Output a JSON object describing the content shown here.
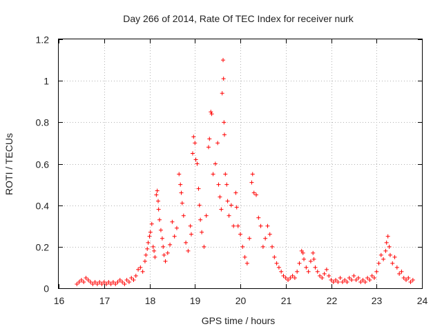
{
  "chart_data": {
    "type": "scatter",
    "title": "Day 266 of 2014, Rate Of TEC Index for receiver nurk",
    "xlabel": "GPS time / hours",
    "ylabel": "ROTI / TECUs",
    "xlim": [
      16,
      24
    ],
    "ylim": [
      0,
      1.2
    ],
    "xticks": [
      16,
      17,
      18,
      19,
      20,
      21,
      22,
      23,
      24
    ],
    "xtick_labels": [
      "16",
      "17",
      "18",
      "19",
      "20",
      "21",
      "22",
      "23",
      "24"
    ],
    "yticks": [
      0,
      0.2,
      0.4,
      0.6,
      0.8,
      1.0,
      1.2
    ],
    "ytick_labels": [
      "0",
      "0.2",
      "0.4",
      "0.6",
      "0.8",
      "1",
      "1.2"
    ],
    "grid": true,
    "marker": "+",
    "color": "#ff0000",
    "series": [
      {
        "name": "ROTI",
        "points": [
          [
            16.4,
            0.02
          ],
          [
            16.45,
            0.03
          ],
          [
            16.5,
            0.04
          ],
          [
            16.55,
            0.03
          ],
          [
            16.6,
            0.05
          ],
          [
            16.65,
            0.04
          ],
          [
            16.7,
            0.03
          ],
          [
            16.75,
            0.02
          ],
          [
            16.8,
            0.03
          ],
          [
            16.85,
            0.02
          ],
          [
            16.9,
            0.03
          ],
          [
            16.95,
            0.02
          ],
          [
            17.0,
            0.03
          ],
          [
            17.05,
            0.02
          ],
          [
            17.1,
            0.03
          ],
          [
            17.15,
            0.02
          ],
          [
            17.2,
            0.03
          ],
          [
            17.25,
            0.02
          ],
          [
            17.3,
            0.03
          ],
          [
            17.35,
            0.04
          ],
          [
            17.4,
            0.03
          ],
          [
            17.45,
            0.02
          ],
          [
            17.5,
            0.04
          ],
          [
            17.55,
            0.03
          ],
          [
            17.6,
            0.05
          ],
          [
            17.65,
            0.04
          ],
          [
            17.7,
            0.06
          ],
          [
            17.75,
            0.09
          ],
          [
            17.8,
            0.1
          ],
          [
            17.85,
            0.08
          ],
          [
            17.9,
            0.13
          ],
          [
            17.92,
            0.16
          ],
          [
            17.95,
            0.19
          ],
          [
            17.97,
            0.22
          ],
          [
            18.0,
            0.25
          ],
          [
            18.02,
            0.27
          ],
          [
            18.05,
            0.31
          ],
          [
            18.08,
            0.2
          ],
          [
            18.1,
            0.18
          ],
          [
            18.12,
            0.15
          ],
          [
            18.15,
            0.45
          ],
          [
            18.17,
            0.47
          ],
          [
            18.19,
            0.42
          ],
          [
            18.2,
            0.38
          ],
          [
            18.22,
            0.33
          ],
          [
            18.25,
            0.28
          ],
          [
            18.28,
            0.24
          ],
          [
            18.3,
            0.2
          ],
          [
            18.32,
            0.16
          ],
          [
            18.35,
            0.13
          ],
          [
            18.4,
            0.17
          ],
          [
            18.45,
            0.21
          ],
          [
            18.5,
            0.32
          ],
          [
            18.55,
            0.25
          ],
          [
            18.6,
            0.29
          ],
          [
            18.65,
            0.55
          ],
          [
            18.68,
            0.5
          ],
          [
            18.7,
            0.46
          ],
          [
            18.72,
            0.41
          ],
          [
            18.75,
            0.35
          ],
          [
            18.8,
            0.22
          ],
          [
            18.85,
            0.18
          ],
          [
            18.9,
            0.3
          ],
          [
            18.92,
            0.26
          ],
          [
            18.95,
            0.65
          ],
          [
            18.97,
            0.73
          ],
          [
            19.0,
            0.7
          ],
          [
            19.02,
            0.62
          ],
          [
            19.05,
            0.6
          ],
          [
            19.08,
            0.48
          ],
          [
            19.1,
            0.4
          ],
          [
            19.12,
            0.33
          ],
          [
            19.15,
            0.27
          ],
          [
            19.2,
            0.2
          ],
          [
            19.25,
            0.35
          ],
          [
            19.3,
            0.68
          ],
          [
            19.32,
            0.72
          ],
          [
            19.35,
            0.85
          ],
          [
            19.37,
            0.84
          ],
          [
            19.4,
            0.55
          ],
          [
            19.45,
            0.6
          ],
          [
            19.5,
            0.7
          ],
          [
            19.52,
            0.5
          ],
          [
            19.55,
            0.44
          ],
          [
            19.58,
            0.38
          ],
          [
            19.6,
            0.94
          ],
          [
            19.62,
            1.1
          ],
          [
            19.63,
            1.01
          ],
          [
            19.64,
            0.8
          ],
          [
            19.65,
            0.74
          ],
          [
            19.67,
            0.55
          ],
          [
            19.7,
            0.5
          ],
          [
            19.72,
            0.42
          ],
          [
            19.75,
            0.35
          ],
          [
            19.8,
            0.4
          ],
          [
            19.85,
            0.3
          ],
          [
            19.9,
            0.46
          ],
          [
            19.92,
            0.39
          ],
          [
            19.95,
            0.3
          ],
          [
            20.0,
            0.26
          ],
          [
            20.05,
            0.2
          ],
          [
            20.1,
            0.15
          ],
          [
            20.15,
            0.12
          ],
          [
            20.2,
            0.24
          ],
          [
            20.25,
            0.51
          ],
          [
            20.27,
            0.55
          ],
          [
            20.3,
            0.46
          ],
          [
            20.35,
            0.45
          ],
          [
            20.4,
            0.34
          ],
          [
            20.45,
            0.3
          ],
          [
            20.5,
            0.2
          ],
          [
            20.55,
            0.24
          ],
          [
            20.6,
            0.3
          ],
          [
            20.65,
            0.26
          ],
          [
            20.7,
            0.2
          ],
          [
            20.75,
            0.15
          ],
          [
            20.8,
            0.12
          ],
          [
            20.85,
            0.1
          ],
          [
            20.9,
            0.08
          ],
          [
            20.95,
            0.06
          ],
          [
            21.0,
            0.05
          ],
          [
            21.05,
            0.04
          ],
          [
            21.1,
            0.05
          ],
          [
            21.15,
            0.06
          ],
          [
            21.2,
            0.05
          ],
          [
            21.25,
            0.08
          ],
          [
            21.3,
            0.12
          ],
          [
            21.35,
            0.18
          ],
          [
            21.38,
            0.17
          ],
          [
            21.4,
            0.14
          ],
          [
            21.45,
            0.1
          ],
          [
            21.5,
            0.08
          ],
          [
            21.55,
            0.13
          ],
          [
            21.6,
            0.17
          ],
          [
            21.62,
            0.14
          ],
          [
            21.65,
            0.1
          ],
          [
            21.7,
            0.08
          ],
          [
            21.75,
            0.06
          ],
          [
            21.8,
            0.05
          ],
          [
            21.85,
            0.07
          ],
          [
            21.9,
            0.09
          ],
          [
            21.95,
            0.06
          ],
          [
            22.0,
            0.04
          ],
          [
            22.05,
            0.03
          ],
          [
            22.1,
            0.04
          ],
          [
            22.15,
            0.03
          ],
          [
            22.2,
            0.05
          ],
          [
            22.25,
            0.03
          ],
          [
            22.3,
            0.04
          ],
          [
            22.35,
            0.03
          ],
          [
            22.4,
            0.05
          ],
          [
            22.45,
            0.04
          ],
          [
            22.5,
            0.06
          ],
          [
            22.55,
            0.04
          ],
          [
            22.6,
            0.05
          ],
          [
            22.65,
            0.03
          ],
          [
            22.7,
            0.04
          ],
          [
            22.75,
            0.03
          ],
          [
            22.8,
            0.05
          ],
          [
            22.85,
            0.04
          ],
          [
            22.9,
            0.06
          ],
          [
            22.95,
            0.05
          ],
          [
            23.0,
            0.08
          ],
          [
            23.05,
            0.12
          ],
          [
            23.1,
            0.16
          ],
          [
            23.15,
            0.14
          ],
          [
            23.2,
            0.18
          ],
          [
            23.22,
            0.22
          ],
          [
            23.25,
            0.25
          ],
          [
            23.28,
            0.2
          ],
          [
            23.3,
            0.16
          ],
          [
            23.35,
            0.12
          ],
          [
            23.4,
            0.15
          ],
          [
            23.45,
            0.1
          ],
          [
            23.5,
            0.07
          ],
          [
            23.55,
            0.08
          ],
          [
            23.6,
            0.05
          ],
          [
            23.65,
            0.04
          ],
          [
            23.7,
            0.05
          ],
          [
            23.75,
            0.03
          ],
          [
            23.8,
            0.04
          ]
        ]
      }
    ]
  }
}
